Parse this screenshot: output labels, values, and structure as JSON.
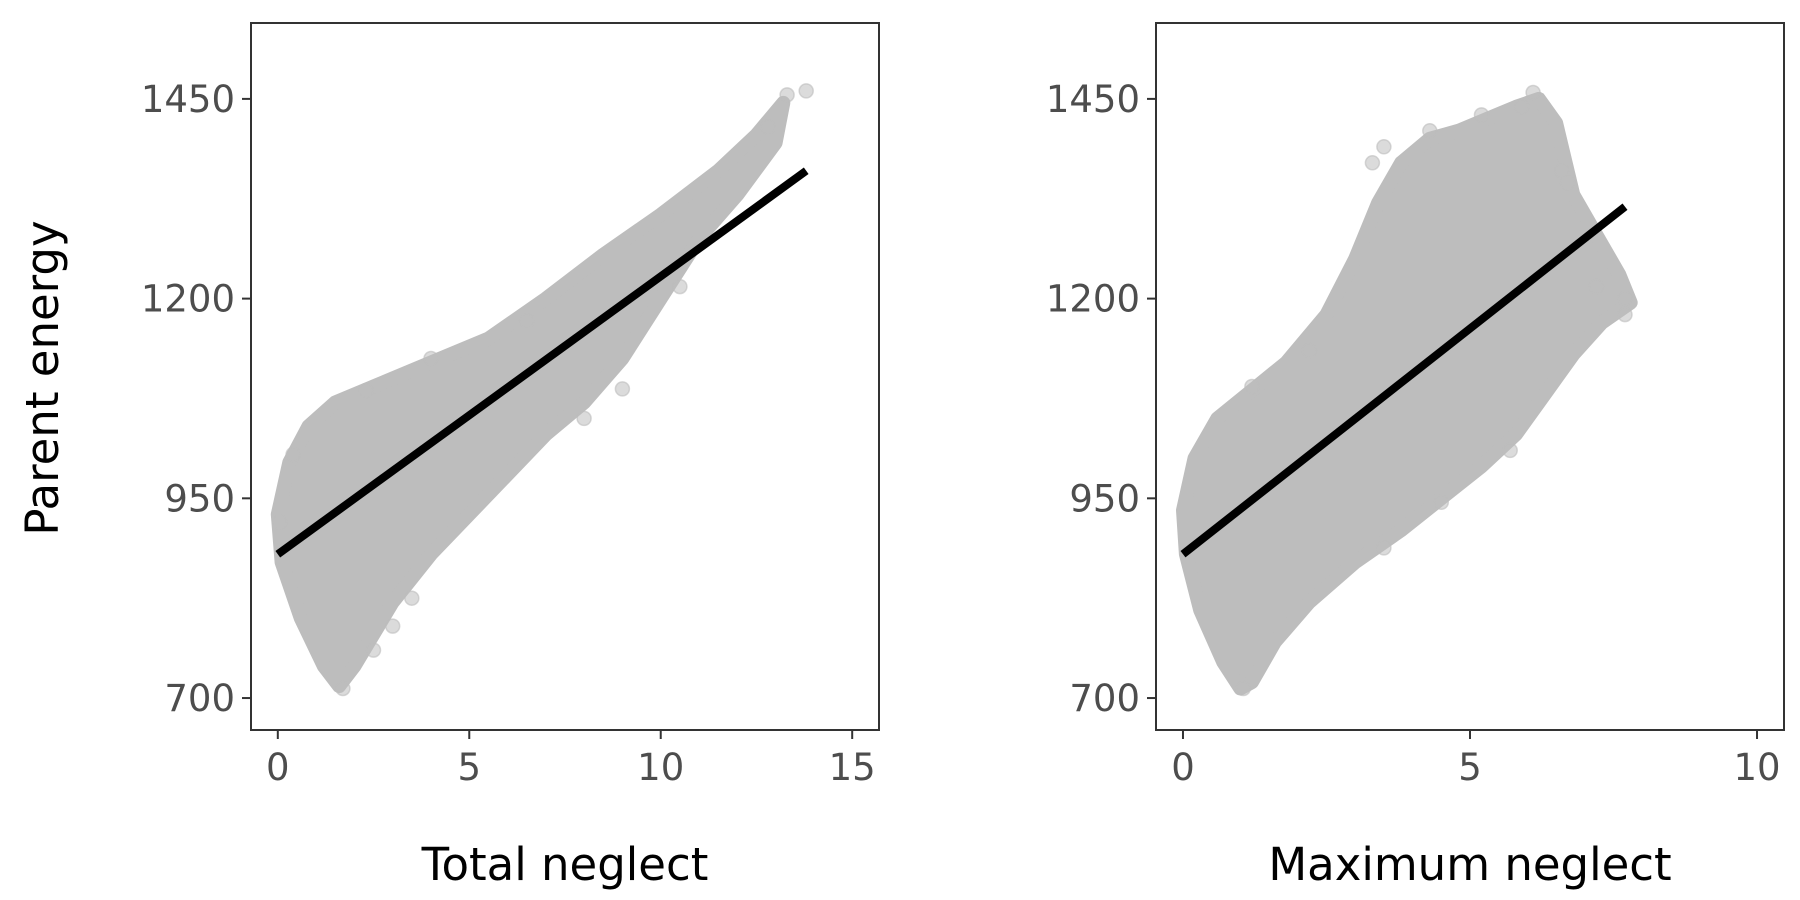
{
  "chart_data": [
    {
      "type": "scatter",
      "xlabel": "Total neglect",
      "ylabel": "Parent energy",
      "xlim": [
        -0.7,
        15.7
      ],
      "ylim": [
        660,
        1545
      ],
      "xticks": [
        0,
        5,
        10,
        15
      ],
      "yticks": [
        700,
        950,
        1200,
        1450
      ],
      "xtick_labels": [
        "0",
        "5",
        "10",
        "15"
      ],
      "ytick_labels": [
        "700",
        "950",
        "1200",
        "1450"
      ],
      "grid": false,
      "point_color": "#bdbdbd",
      "line_color": "#000000",
      "cloud_outline": [
        [
          0.0,
          930
        ],
        [
          0.3,
          995
        ],
        [
          0.8,
          1040
        ],
        [
          1.5,
          1070
        ],
        [
          2.5,
          1090
        ],
        [
          4.0,
          1120
        ],
        [
          5.5,
          1150
        ],
        [
          7.0,
          1200
        ],
        [
          8.5,
          1255
        ],
        [
          10.0,
          1305
        ],
        [
          11.5,
          1360
        ],
        [
          12.5,
          1405
        ],
        [
          13.2,
          1445
        ],
        [
          13.0,
          1395
        ],
        [
          12.0,
          1330
        ],
        [
          11.0,
          1275
        ],
        [
          10.0,
          1200
        ],
        [
          9.0,
          1125
        ],
        [
          8.0,
          1070
        ],
        [
          7.0,
          1030
        ],
        [
          6.0,
          980
        ],
        [
          5.0,
          930
        ],
        [
          4.0,
          880
        ],
        [
          3.0,
          820
        ],
        [
          2.0,
          740
        ],
        [
          1.6,
          715
        ],
        [
          1.2,
          740
        ],
        [
          0.6,
          800
        ],
        [
          0.1,
          870
        ]
      ],
      "outlier_points": [
        {
          "x": 13.8,
          "y": 1460
        },
        {
          "x": 13.3,
          "y": 1455
        },
        {
          "x": 12.8,
          "y": 1415
        },
        {
          "x": 10.5,
          "y": 1215
        },
        {
          "x": 9.0,
          "y": 1087
        },
        {
          "x": 8.0,
          "y": 1050
        },
        {
          "x": 3.5,
          "y": 825
        },
        {
          "x": 3.0,
          "y": 790
        },
        {
          "x": 2.5,
          "y": 760
        },
        {
          "x": 1.7,
          "y": 712
        },
        {
          "x": 2.3,
          "y": 1085
        },
        {
          "x": 4.0,
          "y": 1125
        },
        {
          "x": 0.4,
          "y": 1005
        },
        {
          "x": 0.05,
          "y": 920
        },
        {
          "x": 6.5,
          "y": 1172
        }
      ],
      "fit_line": [
        [
          0,
          880
        ],
        [
          13.8,
          1360
        ]
      ]
    },
    {
      "type": "scatter",
      "xlabel": "Maximum neglect",
      "ylabel": "",
      "xlim": [
        -0.47,
        10.47
      ],
      "ylim": [
        660,
        1545
      ],
      "xticks": [
        0,
        5,
        10
      ],
      "yticks": [
        700,
        950,
        1200,
        1450
      ],
      "xtick_labels": [
        "0",
        "5",
        "10"
      ],
      "ytick_labels": [
        "700",
        "950",
        "1200",
        "1450"
      ],
      "grid": false,
      "point_color": "#bdbdbd",
      "line_color": "#000000",
      "cloud_outline": [
        [
          0.0,
          935
        ],
        [
          0.2,
          1000
        ],
        [
          0.6,
          1050
        ],
        [
          1.2,
          1085
        ],
        [
          1.8,
          1120
        ],
        [
          2.5,
          1180
        ],
        [
          3.0,
          1250
        ],
        [
          3.4,
          1320
        ],
        [
          3.8,
          1370
        ],
        [
          4.3,
          1400
        ],
        [
          4.8,
          1410
        ],
        [
          5.3,
          1425
        ],
        [
          5.8,
          1440
        ],
        [
          6.2,
          1450
        ],
        [
          6.5,
          1420
        ],
        [
          6.8,
          1330
        ],
        [
          7.2,
          1280
        ],
        [
          7.6,
          1230
        ],
        [
          7.8,
          1195
        ],
        [
          7.3,
          1170
        ],
        [
          6.8,
          1130
        ],
        [
          6.3,
          1080
        ],
        [
          5.8,
          1030
        ],
        [
          5.2,
          990
        ],
        [
          4.5,
          950
        ],
        [
          3.8,
          910
        ],
        [
          3.0,
          870
        ],
        [
          2.2,
          820
        ],
        [
          1.6,
          770
        ],
        [
          1.2,
          720
        ],
        [
          1.0,
          712
        ],
        [
          0.7,
          745
        ],
        [
          0.3,
          810
        ],
        [
          0.05,
          880
        ]
      ],
      "outlier_points": [
        {
          "x": 6.1,
          "y": 1458
        },
        {
          "x": 5.9,
          "y": 1440
        },
        {
          "x": 5.2,
          "y": 1430
        },
        {
          "x": 4.3,
          "y": 1410
        },
        {
          "x": 3.5,
          "y": 1390
        },
        {
          "x": 3.3,
          "y": 1370
        },
        {
          "x": 6.6,
          "y": 1360
        },
        {
          "x": 7.7,
          "y": 1200
        },
        {
          "x": 7.7,
          "y": 1180
        },
        {
          "x": 7.2,
          "y": 1215
        },
        {
          "x": 5.7,
          "y": 1010
        },
        {
          "x": 4.5,
          "y": 945
        },
        {
          "x": 3.5,
          "y": 888
        },
        {
          "x": 1.05,
          "y": 712
        },
        {
          "x": 1.2,
          "y": 1090
        },
        {
          "x": 2.2,
          "y": 1135
        },
        {
          "x": 6.7,
          "y": 1345
        }
      ],
      "fit_line": [
        [
          0,
          880
        ],
        [
          7.7,
          1315
        ]
      ]
    }
  ]
}
